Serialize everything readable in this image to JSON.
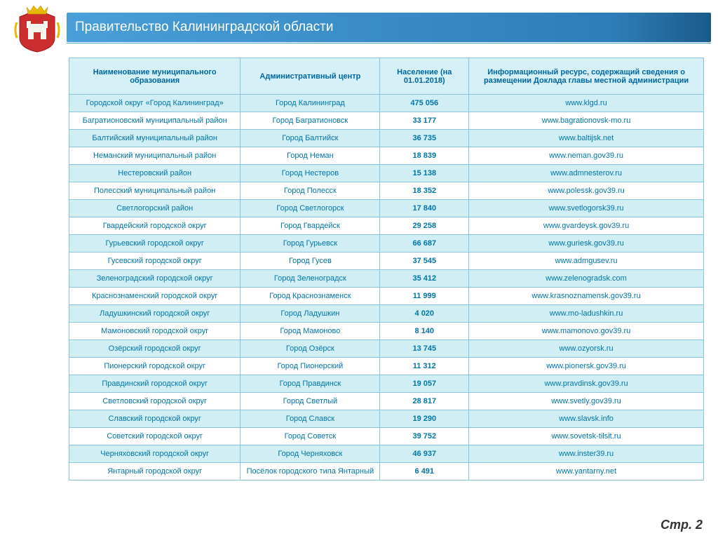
{
  "header": {
    "title": "Правительство   Калининградской   области"
  },
  "page_label": "Стр. 2",
  "colors": {
    "header_gradient_from": "#4a9fd8",
    "header_gradient_to": "#1a5a8a",
    "border": "#88c4e0",
    "th_bg": "#d6f0f7",
    "row_alt_bg": "#d0eef4",
    "row_bg": "#ffffff",
    "text": "#0075a8"
  },
  "emblem": {
    "shield_fill": "#cc2e2e",
    "castle_fill": "#f5f5f0",
    "crown_fill": "#e6b800"
  },
  "table": {
    "columns": [
      "Наименование муниципального образования",
      "Административный центр",
      "Население (на 01.01.2018)",
      "Информационный ресурс, содержащий сведения о размещении Доклада главы местной администрации"
    ],
    "rows": [
      [
        "Городской округ «Город Калининград»",
        "Город Калининград",
        "475 056",
        "www.klgd.ru"
      ],
      [
        "Багратионовский муниципальный район",
        "Город Багратионовск",
        "33 177",
        "www.bagrationovsk-mo.ru"
      ],
      [
        "Балтийский муниципальный район",
        "Город Балтийск",
        "36 735",
        "www.baltijsk.net"
      ],
      [
        "Неманский муниципальный район",
        "Город Неман",
        "18 839",
        "www.neman.gov39.ru"
      ],
      [
        "Нестеровский район",
        "Город Нестеров",
        "15 138",
        "www.admnesterov.ru"
      ],
      [
        "Полесский муниципальный район",
        "Город Полесск",
        "18 352",
        "www.polessk.gov39.ru"
      ],
      [
        "Светлогорский район",
        "Город Светлогорск",
        "17 840",
        "www.svetlogorsk39.ru"
      ],
      [
        "Гвардейский городской округ",
        "Город Гвардейск",
        "29 258",
        "www.gvardeysk.gov39.ru"
      ],
      [
        "Гурьевский городской округ",
        "Город Гурьевск",
        "66 687",
        "www.guriesk.gov39.ru"
      ],
      [
        "Гусевский городской округ",
        "Город Гусев",
        "37 545",
        "www.admgusev.ru"
      ],
      [
        "Зеленоградский городской округ",
        "Город Зеленоградск",
        "35 412",
        "www.zelenogradsk.com"
      ],
      [
        "Краснознаменский городской округ",
        "Город Краснознаменск",
        "11 999",
        "www.krasnoznamensk.gov39.ru"
      ],
      [
        "Ладушкинский городской округ",
        "Город Ладушкин",
        "4 020",
        "www.mo-ladushkin.ru"
      ],
      [
        "Мамоновский городской округ",
        "Город Мамоново",
        "8 140",
        "www.mamonovo.gov39.ru"
      ],
      [
        "Озёрский городской округ",
        "Город  Озёрск",
        "13 745",
        "www.ozyorsk.ru"
      ],
      [
        "Пионерский городской округ",
        "Город Пионерский",
        "11 312",
        "www.pionersk.gov39.ru"
      ],
      [
        "Правдинский городской округ",
        "Город Правдинск",
        "19 057",
        "www.pravdinsk.gov39.ru"
      ],
      [
        "Светловский городской округ",
        "Город Светлый",
        "28 817",
        "www.svetly.gov39.ru"
      ],
      [
        "Славский городской округ",
        "Город Славск",
        "19 290",
        "www.slavsk.info"
      ],
      [
        "Советский городской округ",
        "Город Советск",
        "39 752",
        "www.sovetsk-tilsit.ru"
      ],
      [
        "Черняховский городской округ",
        "Город Черняховск",
        "46 937",
        "www.inster39.ru"
      ],
      [
        "Янтарный городской округ",
        "Посёлок городского типа  Янтарный",
        "6 491",
        "www.yantarny.net"
      ]
    ]
  }
}
